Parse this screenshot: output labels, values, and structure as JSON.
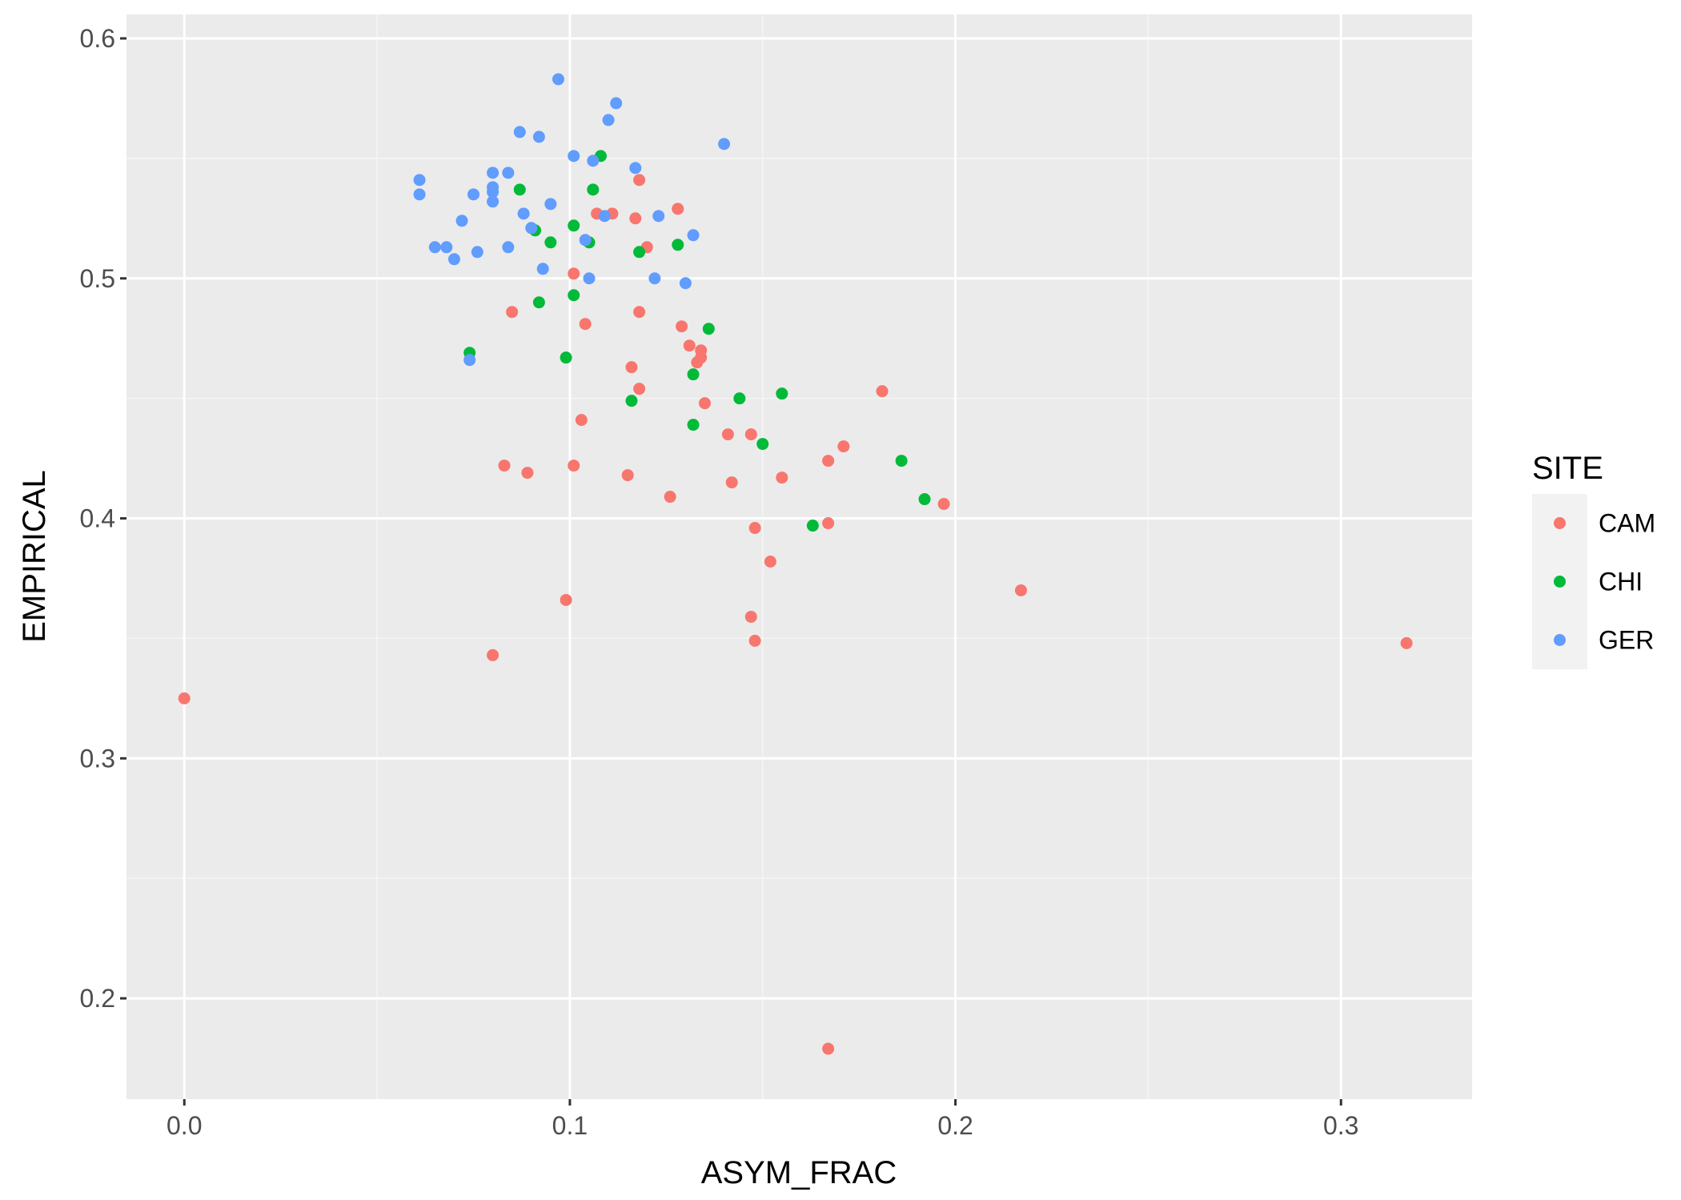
{
  "chart_data": {
    "type": "scatter",
    "xlabel": "ASYM_FRAC",
    "ylabel": "EMPIRICAL",
    "xlim": [
      -0.015,
      0.334
    ],
    "ylim": [
      0.158,
      0.61
    ],
    "x_ticks": [
      0.0,
      0.1,
      0.2,
      0.3
    ],
    "x_tick_labels": [
      "0.0",
      "0.1",
      "0.2",
      "0.3"
    ],
    "y_ticks": [
      0.2,
      0.3,
      0.4,
      0.5,
      0.6
    ],
    "y_tick_labels": [
      "0.2",
      "0.3",
      "0.4",
      "0.5",
      "0.6"
    ],
    "grid": true,
    "legend": {
      "title": "SITE",
      "position": "right"
    },
    "series": [
      {
        "name": "CAM",
        "color": "#F8766D",
        "points": [
          [
            0.0,
            0.325
          ],
          [
            0.08,
            0.343
          ],
          [
            0.083,
            0.422
          ],
          [
            0.085,
            0.486
          ],
          [
            0.089,
            0.419
          ],
          [
            0.099,
            0.366
          ],
          [
            0.101,
            0.422
          ],
          [
            0.101,
            0.502
          ],
          [
            0.103,
            0.441
          ],
          [
            0.104,
            0.481
          ],
          [
            0.107,
            0.527
          ],
          [
            0.111,
            0.527
          ],
          [
            0.115,
            0.418
          ],
          [
            0.116,
            0.463
          ],
          [
            0.117,
            0.525
          ],
          [
            0.118,
            0.541
          ],
          [
            0.118,
            0.454
          ],
          [
            0.118,
            0.486
          ],
          [
            0.12,
            0.513
          ],
          [
            0.126,
            0.409
          ],
          [
            0.128,
            0.529
          ],
          [
            0.129,
            0.48
          ],
          [
            0.131,
            0.472
          ],
          [
            0.133,
            0.465
          ],
          [
            0.134,
            0.467
          ],
          [
            0.134,
            0.47
          ],
          [
            0.135,
            0.448
          ],
          [
            0.141,
            0.435
          ],
          [
            0.142,
            0.415
          ],
          [
            0.147,
            0.359
          ],
          [
            0.147,
            0.435
          ],
          [
            0.148,
            0.396
          ],
          [
            0.148,
            0.349
          ],
          [
            0.152,
            0.382
          ],
          [
            0.155,
            0.417
          ],
          [
            0.167,
            0.424
          ],
          [
            0.167,
            0.398
          ],
          [
            0.167,
            0.179
          ],
          [
            0.171,
            0.43
          ],
          [
            0.181,
            0.453
          ],
          [
            0.197,
            0.406
          ],
          [
            0.217,
            0.37
          ],
          [
            0.317,
            0.348
          ]
        ]
      },
      {
        "name": "CHI",
        "color": "#00BA38",
        "points": [
          [
            0.074,
            0.469
          ],
          [
            0.087,
            0.537
          ],
          [
            0.091,
            0.52
          ],
          [
            0.092,
            0.49
          ],
          [
            0.095,
            0.515
          ],
          [
            0.099,
            0.467
          ],
          [
            0.101,
            0.522
          ],
          [
            0.101,
            0.493
          ],
          [
            0.105,
            0.515
          ],
          [
            0.106,
            0.537
          ],
          [
            0.108,
            0.551
          ],
          [
            0.116,
            0.449
          ],
          [
            0.118,
            0.511
          ],
          [
            0.128,
            0.514
          ],
          [
            0.132,
            0.46
          ],
          [
            0.132,
            0.439
          ],
          [
            0.136,
            0.479
          ],
          [
            0.144,
            0.45
          ],
          [
            0.15,
            0.431
          ],
          [
            0.155,
            0.452
          ],
          [
            0.163,
            0.397
          ],
          [
            0.186,
            0.424
          ],
          [
            0.192,
            0.408
          ]
        ]
      },
      {
        "name": "GER",
        "color": "#619CFF",
        "points": [
          [
            0.061,
            0.541
          ],
          [
            0.061,
            0.535
          ],
          [
            0.065,
            0.513
          ],
          [
            0.068,
            0.513
          ],
          [
            0.07,
            0.508
          ],
          [
            0.072,
            0.524
          ],
          [
            0.074,
            0.466
          ],
          [
            0.075,
            0.535
          ],
          [
            0.076,
            0.511
          ],
          [
            0.08,
            0.544
          ],
          [
            0.08,
            0.538
          ],
          [
            0.08,
            0.536
          ],
          [
            0.08,
            0.532
          ],
          [
            0.084,
            0.544
          ],
          [
            0.084,
            0.513
          ],
          [
            0.087,
            0.561
          ],
          [
            0.088,
            0.527
          ],
          [
            0.09,
            0.521
          ],
          [
            0.092,
            0.559
          ],
          [
            0.093,
            0.504
          ],
          [
            0.095,
            0.531
          ],
          [
            0.097,
            0.583
          ],
          [
            0.101,
            0.551
          ],
          [
            0.104,
            0.516
          ],
          [
            0.105,
            0.5
          ],
          [
            0.106,
            0.549
          ],
          [
            0.109,
            0.526
          ],
          [
            0.11,
            0.566
          ],
          [
            0.112,
            0.573
          ],
          [
            0.117,
            0.546
          ],
          [
            0.122,
            0.5
          ],
          [
            0.123,
            0.526
          ],
          [
            0.13,
            0.498
          ],
          [
            0.132,
            0.518
          ],
          [
            0.14,
            0.556
          ]
        ]
      }
    ]
  }
}
